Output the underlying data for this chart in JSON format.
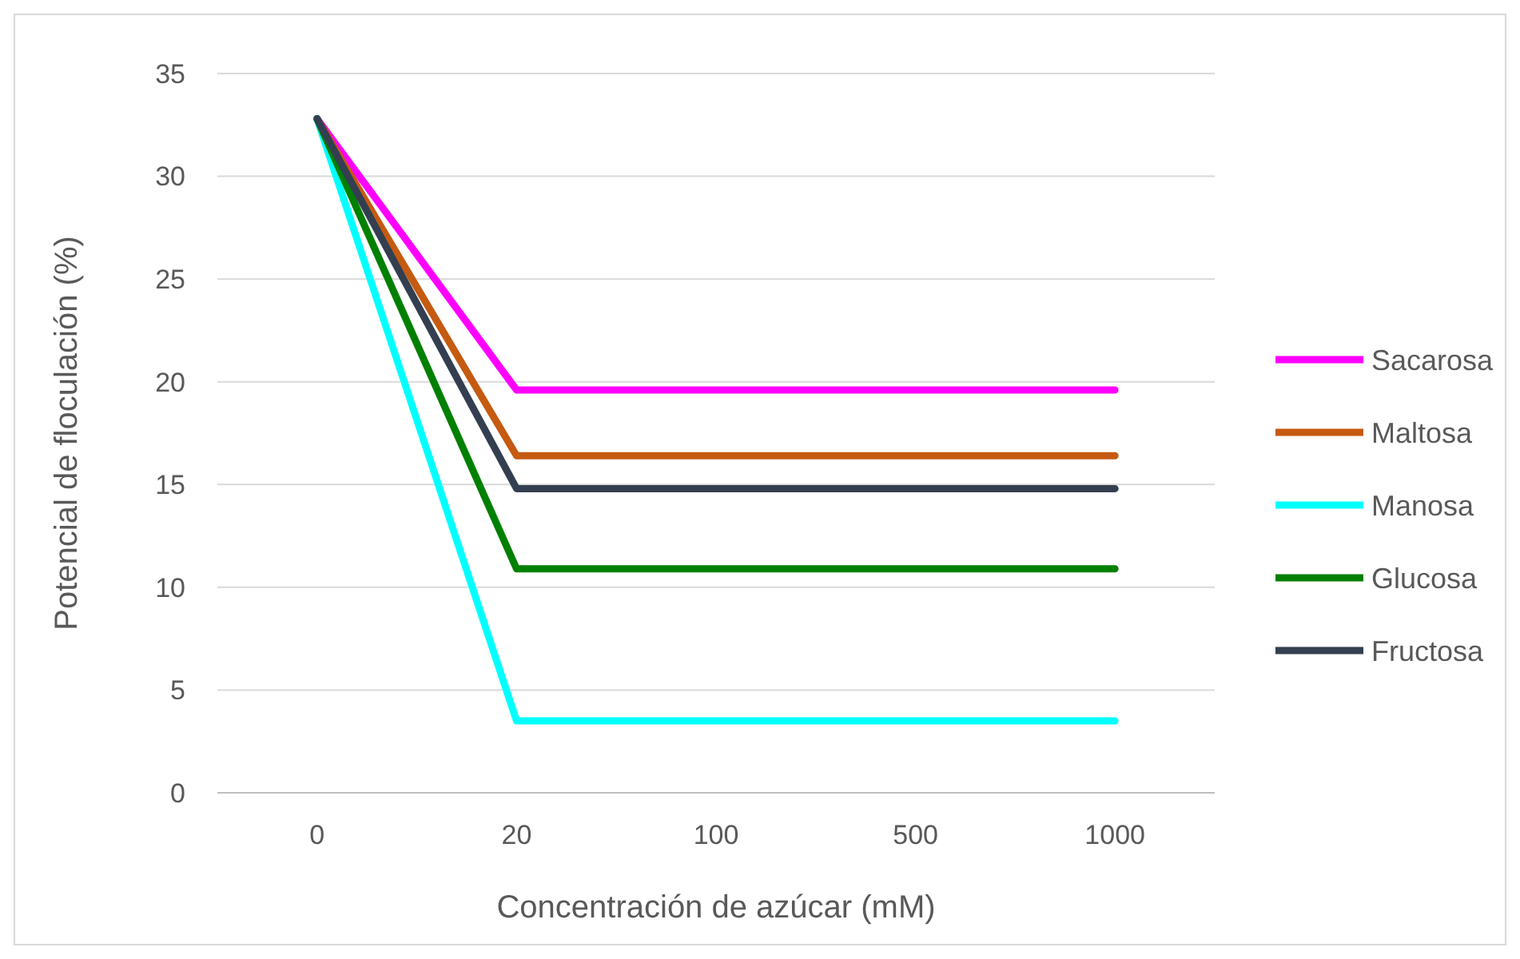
{
  "chart_data": {
    "type": "line",
    "xlabel": "Concentración de azúcar (mM)",
    "ylabel": "Potencial de floculación (%)",
    "categories": [
      "0",
      "20",
      "100",
      "500",
      "1000"
    ],
    "ylim": [
      0,
      35
    ],
    "yticks": [
      0,
      5,
      10,
      15,
      20,
      25,
      30,
      35
    ],
    "grid": "y",
    "legend": "right",
    "marker": "none",
    "line_style": "solid",
    "series": [
      {
        "name": "Sacarosa",
        "color": "#ff00ff",
        "values": [
          32.8,
          19.6,
          19.6,
          19.6,
          19.6
        ]
      },
      {
        "name": "Maltosa",
        "color": "#c55a11",
        "values": [
          32.8,
          16.4,
          16.4,
          16.4,
          16.4
        ]
      },
      {
        "name": "Manosa",
        "color": "#00ffff",
        "values": [
          32.8,
          3.5,
          3.5,
          3.5,
          3.5
        ]
      },
      {
        "name": "Glucosa",
        "color": "#008000",
        "values": [
          32.8,
          10.9,
          10.9,
          10.9,
          10.9
        ]
      },
      {
        "name": "Fructosa",
        "color": "#333f50",
        "values": [
          32.8,
          14.8,
          14.8,
          14.8,
          14.8
        ]
      }
    ]
  }
}
